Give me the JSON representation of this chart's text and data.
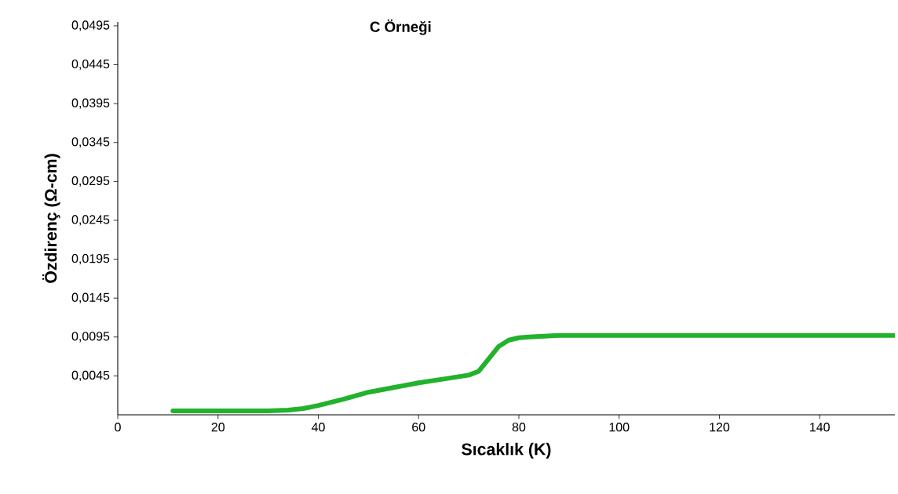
{
  "chart_data": {
    "type": "line",
    "title": "C Örneği",
    "xlabel": "Sıcaklık (K)",
    "ylabel": "Özdirenç  (Ω-cm)",
    "x": [
      11,
      20,
      30,
      34,
      37,
      40,
      45,
      50,
      55,
      60,
      65,
      70,
      72,
      74,
      76,
      78,
      80,
      82,
      85,
      88,
      100,
      120,
      140,
      155
    ],
    "series": [
      {
        "color": "#22b22c",
        "values": [
          0.0,
          0.0,
          0.0,
          0.0001,
          0.0003,
          0.0007,
          0.0015,
          0.0024,
          0.003,
          0.0036,
          0.0041,
          0.0046,
          0.0051,
          0.0067,
          0.0083,
          0.0091,
          0.0094,
          0.0095,
          0.0096,
          0.0097,
          0.0097,
          0.0097,
          0.0097,
          0.0097
        ]
      }
    ],
    "xlim": [
      0,
      155
    ],
    "ylim": [
      -0.0005,
      0.05
    ],
    "xticks": [
      0,
      20,
      40,
      60,
      80,
      100,
      120,
      140
    ],
    "yticks": [
      {
        "value": 0.0045,
        "label": "0,0045"
      },
      {
        "value": 0.0095,
        "label": "0,0095"
      },
      {
        "value": 0.0145,
        "label": "0,0145"
      },
      {
        "value": 0.0195,
        "label": "0,0195"
      },
      {
        "value": 0.0245,
        "label": "0,0245"
      },
      {
        "value": 0.0295,
        "label": "0,0295"
      },
      {
        "value": 0.0345,
        "label": "0,0345"
      },
      {
        "value": 0.0395,
        "label": "0,0395"
      },
      {
        "value": 0.0445,
        "label": "0,0445"
      },
      {
        "value": 0.0495,
        "label": "0,0495"
      }
    ],
    "grid": false,
    "marker": "none",
    "line_style": "solid"
  }
}
